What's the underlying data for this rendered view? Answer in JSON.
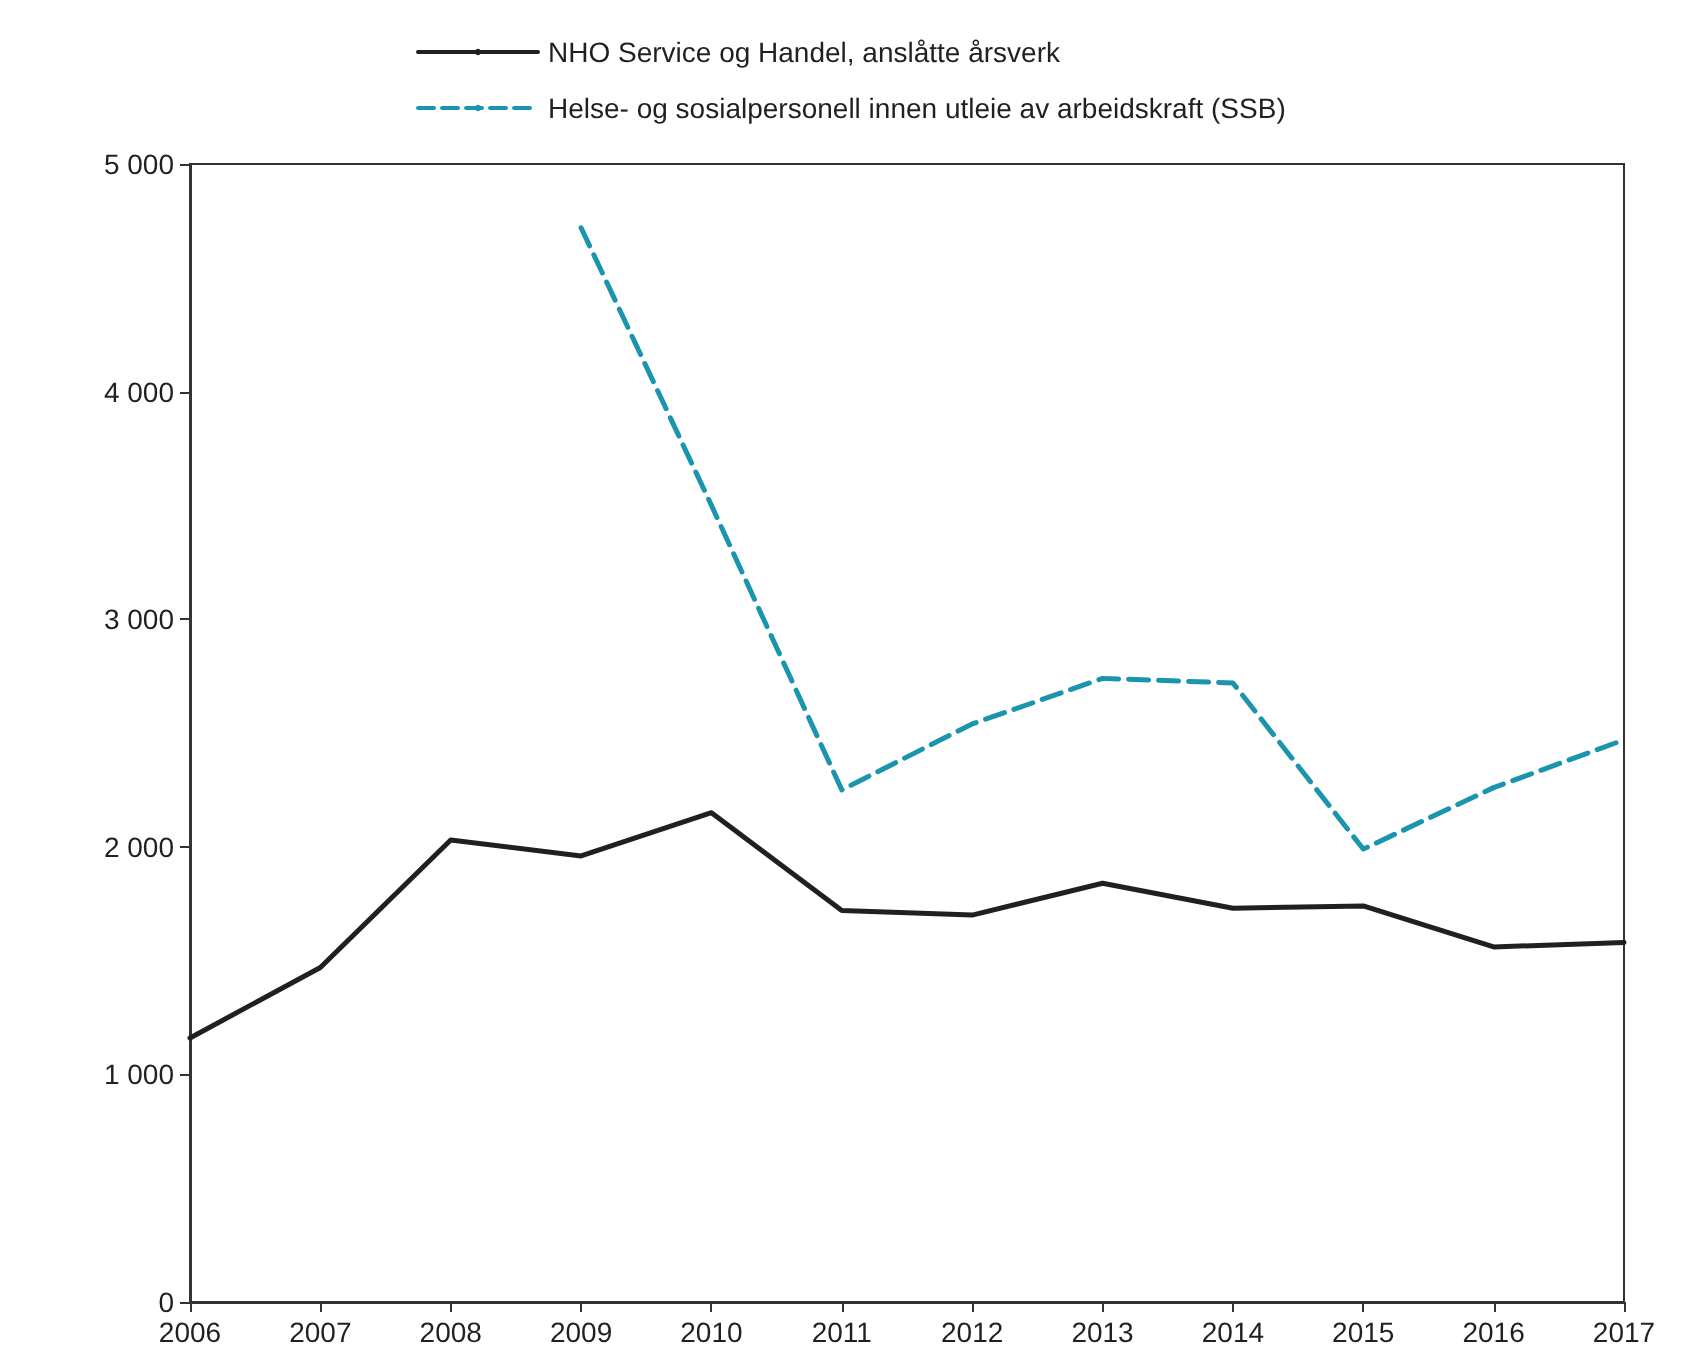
{
  "chart_data": {
    "type": "line",
    "categories": [
      "2006",
      "2007",
      "2008",
      "2009",
      "2010",
      "2011",
      "2012",
      "2013",
      "2014",
      "2015",
      "2016",
      "2017"
    ],
    "series": [
      {
        "name": "NHO Service og Handel, anslåtte årsverk",
        "color": "#231f20",
        "line_style": "solid",
        "values": [
          1160,
          1470,
          2030,
          1960,
          2150,
          1720,
          1700,
          1840,
          1730,
          1740,
          1560,
          1580
        ]
      },
      {
        "name": "Helse- og sosialpersonell innen utleie av arbeidskraft (SSB)",
        "color": "#1a95ad",
        "line_style": "dashed",
        "values": [
          null,
          null,
          null,
          4720,
          3500,
          2250,
          2540,
          2740,
          2720,
          1990,
          2260,
          2470
        ]
      }
    ],
    "ylim": [
      0,
      5000
    ],
    "yticks": [
      0,
      {
        "value": 1000,
        "label": "1 000"
      },
      {
        "value": 2000,
        "label": "2 000"
      },
      {
        "value": 3000,
        "label": "3 000"
      },
      {
        "value": 4000,
        "label": "4 000"
      },
      {
        "value": 5000,
        "label": "5 000"
      }
    ],
    "grid": false,
    "legend": "top",
    "marker": "none"
  }
}
